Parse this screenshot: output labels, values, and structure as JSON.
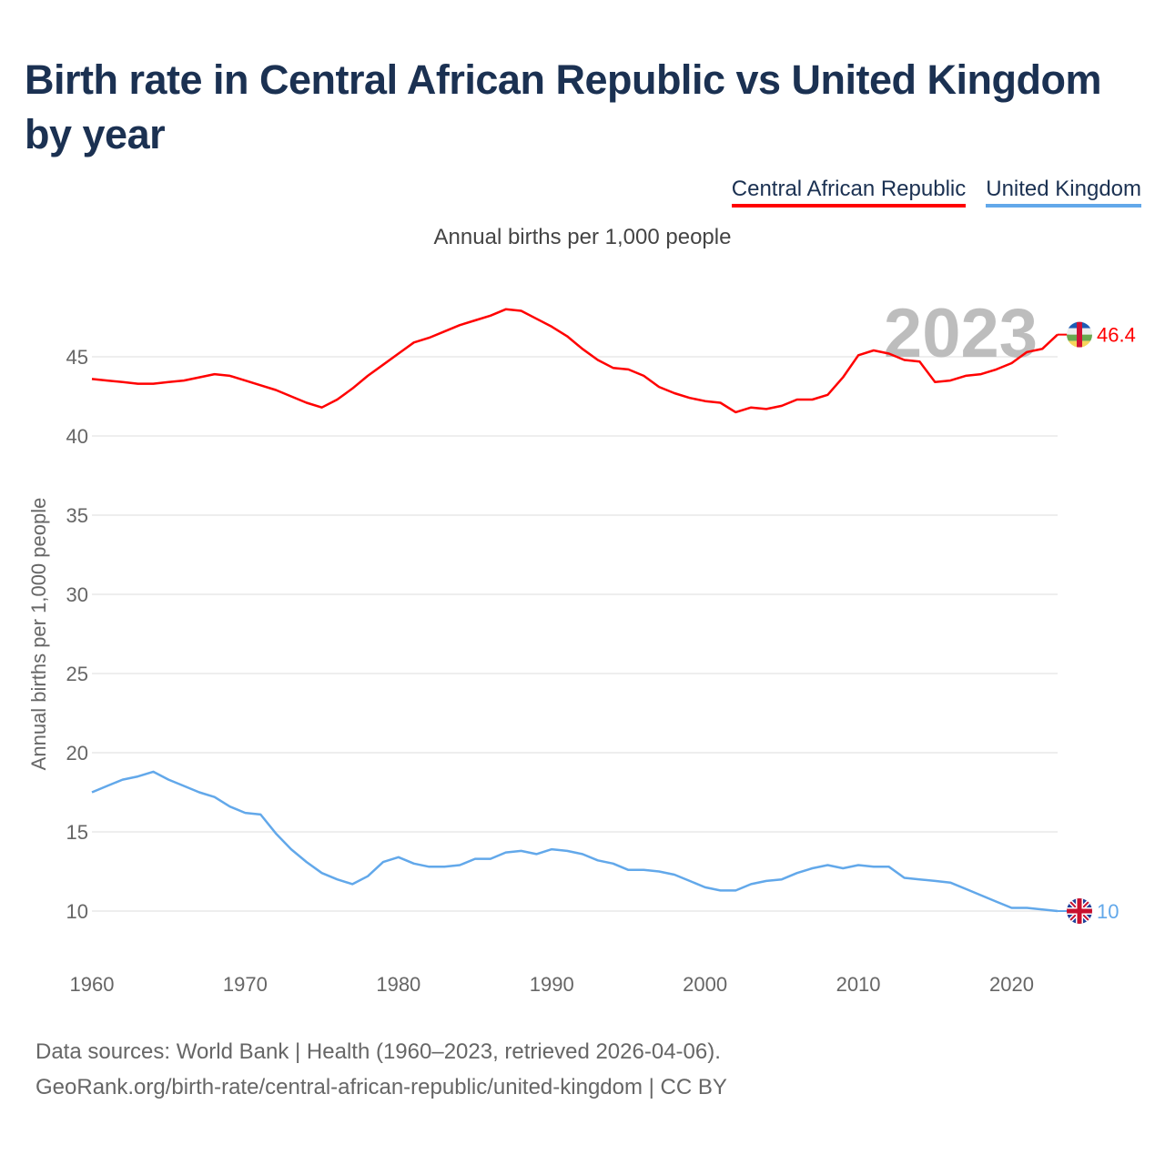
{
  "title": "Birth rate in Central African Republic vs United Kingdom by year",
  "subtitle": "Annual births per 1,000 people",
  "footer": {
    "line1": "Data sources: World Bank | Health (1960–2023, retrieved 2026-04-06).",
    "line2": "GeoRank.org/birth-rate/central-african-republic/united-kingdom | CC BY"
  },
  "chart_data": {
    "type": "line",
    "title": "Birth rate in Central African Republic vs United Kingdom by year",
    "ylabel": "Annual births per 1,000 people",
    "xlabel": "",
    "year_label": "2023",
    "ylim": [
      7,
      49
    ],
    "xlim": [
      1960,
      2023
    ],
    "yticks": [
      10,
      15,
      20,
      25,
      30,
      35,
      40,
      45
    ],
    "xticks": [
      1960,
      1970,
      1980,
      1990,
      2000,
      2010,
      2020
    ],
    "grid": true,
    "legend_position": "top-right",
    "x": [
      1960,
      1961,
      1962,
      1963,
      1964,
      1965,
      1966,
      1967,
      1968,
      1969,
      1970,
      1971,
      1972,
      1973,
      1974,
      1975,
      1976,
      1977,
      1978,
      1979,
      1980,
      1981,
      1982,
      1983,
      1984,
      1985,
      1986,
      1987,
      1988,
      1989,
      1990,
      1991,
      1992,
      1993,
      1994,
      1995,
      1996,
      1997,
      1998,
      1999,
      2000,
      2001,
      2002,
      2003,
      2004,
      2005,
      2006,
      2007,
      2008,
      2009,
      2010,
      2011,
      2012,
      2013,
      2014,
      2015,
      2016,
      2017,
      2018,
      2019,
      2020,
      2021,
      2022,
      2023
    ],
    "series": [
      {
        "name": "Central African Republic",
        "color": "#ff0000",
        "end_label": "46.4",
        "flag": "central-african-republic-flag",
        "values": [
          43.6,
          43.5,
          43.4,
          43.3,
          43.3,
          43.4,
          43.5,
          43.7,
          43.9,
          43.8,
          43.5,
          43.2,
          42.9,
          42.5,
          42.1,
          41.8,
          42.3,
          43.0,
          43.8,
          44.5,
          45.2,
          45.9,
          46.2,
          46.6,
          47.0,
          47.3,
          47.6,
          48.0,
          47.9,
          47.4,
          46.9,
          46.3,
          45.5,
          44.8,
          44.3,
          44.2,
          43.8,
          43.1,
          42.7,
          42.4,
          42.2,
          42.1,
          41.5,
          41.8,
          41.7,
          41.9,
          42.3,
          42.3,
          42.6,
          43.7,
          45.1,
          45.4,
          45.2,
          44.8,
          44.7,
          43.4,
          43.5,
          43.8,
          43.9,
          44.2,
          44.6,
          45.3,
          45.5,
          46.4
        ]
      },
      {
        "name": "United Kingdom",
        "color": "#62a8ea",
        "end_label": "10",
        "flag": "united-kingdom-flag",
        "values": [
          17.5,
          17.9,
          18.3,
          18.5,
          18.8,
          18.3,
          17.9,
          17.5,
          17.2,
          16.6,
          16.2,
          16.1,
          14.9,
          13.9,
          13.1,
          12.4,
          12.0,
          11.7,
          12.2,
          13.1,
          13.4,
          13.0,
          12.8,
          12.8,
          12.9,
          13.3,
          13.3,
          13.7,
          13.8,
          13.6,
          13.9,
          13.8,
          13.6,
          13.2,
          13.0,
          12.6,
          12.6,
          12.5,
          12.3,
          11.9,
          11.5,
          11.3,
          11.3,
          11.7,
          11.9,
          12.0,
          12.4,
          12.7,
          12.9,
          12.7,
          12.9,
          12.8,
          12.8,
          12.1,
          12.0,
          11.9,
          11.8,
          11.4,
          11.0,
          10.6,
          10.2,
          10.2,
          10.1,
          10.0
        ]
      }
    ]
  }
}
